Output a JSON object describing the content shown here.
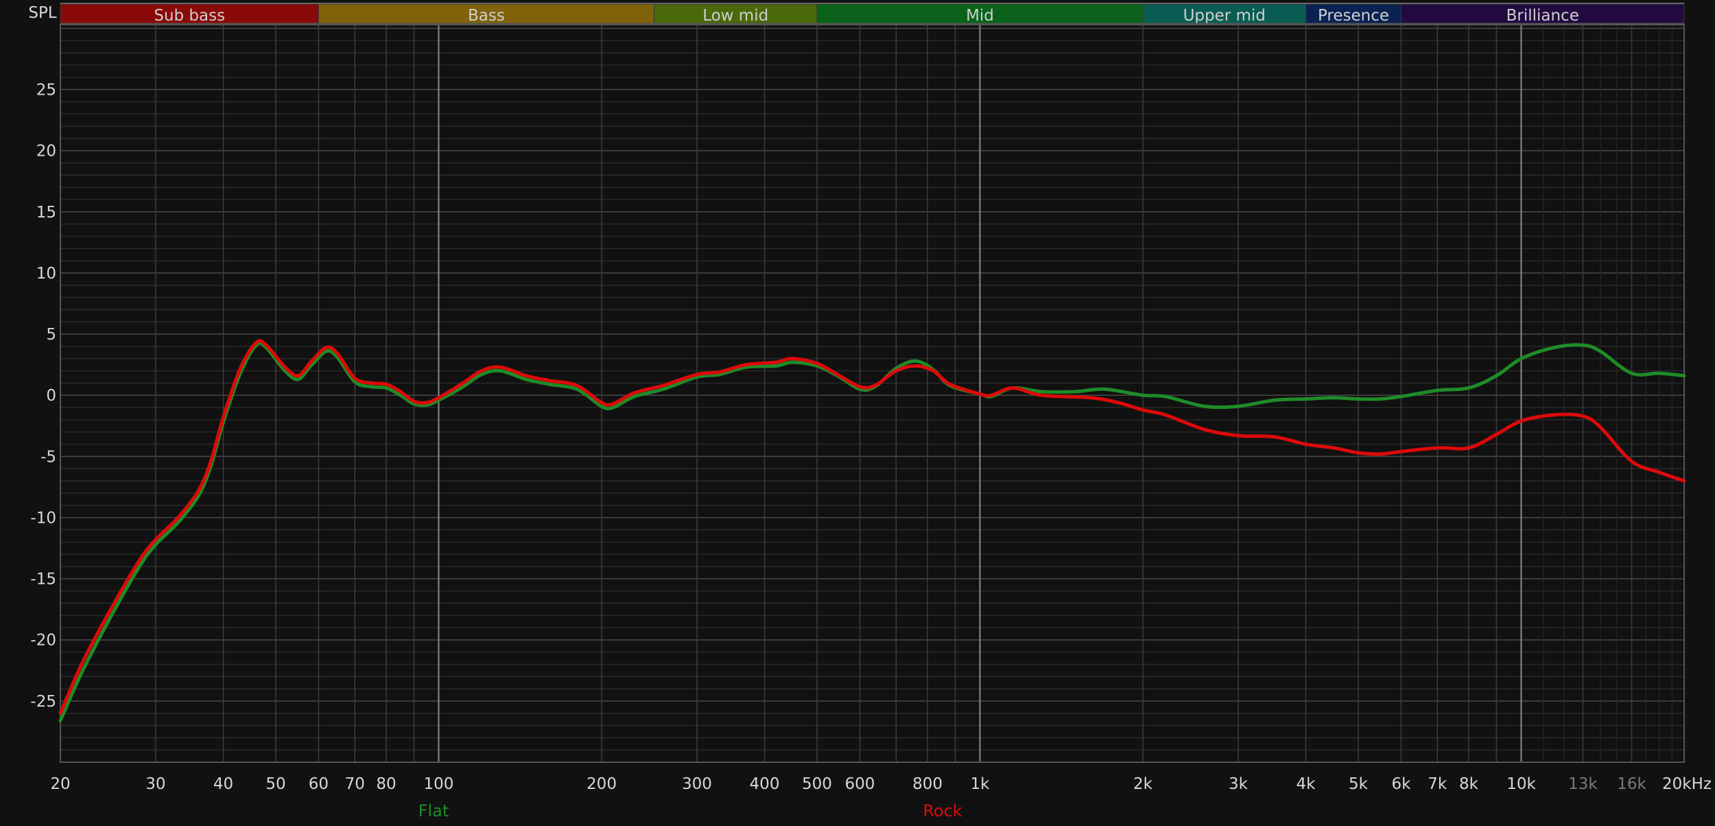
{
  "chart_data": {
    "type": "line",
    "ylabel": "SPL",
    "x_unit": "kHz",
    "x_scale": "log",
    "xlim": [
      20,
      20000
    ],
    "ylim": [
      -30,
      30.3
    ],
    "grid": true,
    "legend_placement": "bottom",
    "y_ticks": [
      25,
      20,
      15,
      10,
      5,
      0,
      -5,
      -10,
      -15,
      -20,
      -25
    ],
    "x_ticks": [
      {
        "value": 20,
        "label": "20"
      },
      {
        "value": 30,
        "label": "30"
      },
      {
        "value": 40,
        "label": "40"
      },
      {
        "value": 50,
        "label": "50"
      },
      {
        "value": 60,
        "label": "60"
      },
      {
        "value": 70,
        "label": "70"
      },
      {
        "value": 80,
        "label": "80"
      },
      {
        "value": 100,
        "label": "100"
      },
      {
        "value": 200,
        "label": "200"
      },
      {
        "value": 300,
        "label": "300"
      },
      {
        "value": 400,
        "label": "400"
      },
      {
        "value": 500,
        "label": "500"
      },
      {
        "value": 600,
        "label": "600"
      },
      {
        "value": 800,
        "label": "800"
      },
      {
        "value": 1000,
        "label": "1k"
      },
      {
        "value": 2000,
        "label": "2k"
      },
      {
        "value": 3000,
        "label": "3k"
      },
      {
        "value": 4000,
        "label": "4k"
      },
      {
        "value": 5000,
        "label": "5k"
      },
      {
        "value": 6000,
        "label": "6k"
      },
      {
        "value": 7000,
        "label": "7k"
      },
      {
        "value": 8000,
        "label": "8k"
      },
      {
        "value": 10000,
        "label": "10k"
      },
      {
        "value": 13000,
        "label": "13k",
        "dim": true
      },
      {
        "value": 16000,
        "label": "16k",
        "dim": true
      },
      {
        "value": 20000,
        "label": "20kHz"
      }
    ],
    "bands": [
      {
        "name": "Sub bass",
        "from": 20,
        "to": 60,
        "color": "#8a0909"
      },
      {
        "name": "Bass",
        "from": 60,
        "to": 250,
        "color": "#80620a"
      },
      {
        "name": "Low mid",
        "from": 250,
        "to": 500,
        "color": "#4a690b"
      },
      {
        "name": "Mid",
        "from": 500,
        "to": 2000,
        "color": "#0a621a"
      },
      {
        "name": "Upper mid",
        "from": 2000,
        "to": 4000,
        "color": "#0a5c52"
      },
      {
        "name": "Presence",
        "from": 4000,
        "to": 6000,
        "color": "#0a2252"
      },
      {
        "name": "Brilliance",
        "from": 6000,
        "to": 20000,
        "color": "#220a40"
      }
    ],
    "series": [
      {
        "name": "Flat",
        "color": "#1e8c28",
        "x": [
          20,
          22,
          25,
          28,
          30,
          33,
          36,
          38,
          40,
          43,
          46,
          48,
          52,
          55,
          58,
          62,
          65,
          70,
          75,
          80,
          85,
          90,
          95,
          100,
          110,
          120,
          130,
          145,
          160,
          180,
          200,
          210,
          230,
          260,
          300,
          330,
          370,
          420,
          450,
          500,
          550,
          600,
          640,
          700,
          760,
          820,
          880,
          1000,
          1050,
          1150,
          1300,
          1500,
          1700,
          2000,
          2200,
          2600,
          3000,
          3500,
          4000,
          4500,
          5000,
          5500,
          6000,
          7000,
          8000,
          9000,
          10000,
          11500,
          13000,
          14000,
          16000,
          18000,
          20000
        ],
        "y": [
          -26.6,
          -22.5,
          -17.8,
          -14,
          -12.2,
          -10.4,
          -8.2,
          -5.7,
          -2.2,
          1.8,
          4.1,
          3.9,
          2,
          1.3,
          2.4,
          3.6,
          3.1,
          1.1,
          0.7,
          0.6,
          0,
          -0.7,
          -0.8,
          -0.4,
          0.6,
          1.7,
          2,
          1.3,
          0.9,
          0.5,
          -0.9,
          -1,
          -0.1,
          0.5,
          1.5,
          1.7,
          2.3,
          2.4,
          2.7,
          2.4,
          1.5,
          0.5,
          0.7,
          2.2,
          2.8,
          2.1,
          0.8,
          0.1,
          -0.1,
          0.6,
          0.3,
          0.3,
          0.5,
          0,
          -0.1,
          -0.9,
          -0.9,
          -0.4,
          -0.3,
          -0.2,
          -0.3,
          -0.3,
          -0.1,
          0.4,
          0.6,
          1.6,
          3,
          3.9,
          4.1,
          3.6,
          1.8,
          1.8,
          1.6
        ]
      },
      {
        "name": "Rock",
        "color": "#dd0a0a",
        "x": [
          20,
          22,
          25,
          28,
          30,
          33,
          36,
          38,
          40,
          43,
          46,
          48,
          52,
          55,
          58,
          62,
          65,
          70,
          75,
          80,
          85,
          90,
          95,
          100,
          110,
          120,
          130,
          145,
          160,
          180,
          200,
          210,
          230,
          260,
          300,
          330,
          370,
          420,
          450,
          500,
          550,
          600,
          640,
          700,
          760,
          820,
          880,
          1000,
          1050,
          1150,
          1300,
          1600,
          1800,
          2000,
          2200,
          2600,
          3000,
          3500,
          4000,
          4500,
          5000,
          5500,
          6000,
          7000,
          8000,
          9000,
          10000,
          11500,
          13000,
          14000,
          16000,
          18000,
          20000
        ],
        "y": [
          -26,
          -21.8,
          -17.2,
          -13.5,
          -11.8,
          -10,
          -7.8,
          -5.3,
          -1.8,
          2.2,
          4.3,
          4.1,
          2.3,
          1.6,
          2.7,
          3.9,
          3.4,
          1.4,
          1,
          0.9,
          0.3,
          -0.5,
          -0.6,
          -0.2,
          0.9,
          2,
          2.3,
          1.6,
          1.2,
          0.8,
          -0.6,
          -0.7,
          0.2,
          0.8,
          1.7,
          1.9,
          2.5,
          2.7,
          3,
          2.6,
          1.6,
          0.7,
          0.8,
          2,
          2.4,
          2,
          0.9,
          0.1,
          0,
          0.6,
          0,
          -0.2,
          -0.6,
          -1.2,
          -1.6,
          -2.8,
          -3.3,
          -3.4,
          -4,
          -4.3,
          -4.7,
          -4.8,
          -4.6,
          -4.3,
          -4.3,
          -3.2,
          -2.1,
          -1.6,
          -1.7,
          -2.6,
          -5.4,
          -6.3,
          -7
        ]
      }
    ]
  }
}
